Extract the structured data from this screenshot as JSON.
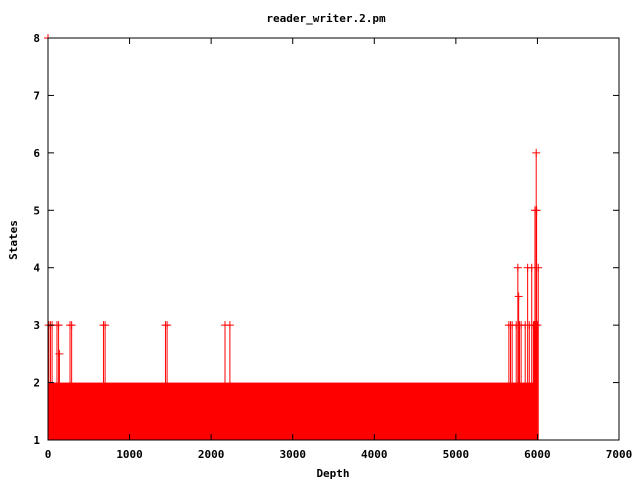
{
  "chart_data": {
    "type": "line",
    "title": "reader_writer.2.pm",
    "xlabel": "Depth",
    "ylabel": "States",
    "xlim": [
      0,
      7000
    ],
    "ylim": [
      1,
      8
    ],
    "xticks": [
      0,
      1000,
      2000,
      3000,
      4000,
      5000,
      6000,
      7000
    ],
    "yticks": [
      1,
      2,
      3,
      4,
      5,
      6,
      7,
      8
    ],
    "grid": false,
    "legend": "none",
    "series_color": "#ff0000",
    "band": {
      "x_range": [
        0,
        6000
      ],
      "y_range": [
        1,
        2
      ]
    },
    "points": [
      [
        0,
        8
      ],
      [
        10,
        3
      ],
      [
        30,
        3
      ],
      [
        50,
        3
      ],
      [
        110,
        3
      ],
      [
        130,
        3
      ],
      [
        140,
        2.5
      ],
      [
        270,
        3
      ],
      [
        290,
        3
      ],
      [
        680,
        3
      ],
      [
        700,
        3
      ],
      [
        1440,
        3
      ],
      [
        1460,
        3
      ],
      [
        2170,
        3
      ],
      [
        2230,
        3
      ],
      [
        5650,
        3
      ],
      [
        5670,
        3
      ],
      [
        5690,
        3
      ],
      [
        5740,
        3
      ],
      [
        5760,
        4
      ],
      [
        5770,
        3.5
      ],
      [
        5780,
        3
      ],
      [
        5800,
        3
      ],
      [
        5850,
        3
      ],
      [
        5880,
        4
      ],
      [
        5900,
        3
      ],
      [
        5930,
        4
      ],
      [
        5950,
        3
      ],
      [
        5960,
        3
      ],
      [
        5970,
        5
      ],
      [
        5980,
        3
      ],
      [
        5985,
        6
      ],
      [
        5990,
        5
      ],
      [
        6000,
        3
      ],
      [
        6010,
        4
      ]
    ]
  }
}
